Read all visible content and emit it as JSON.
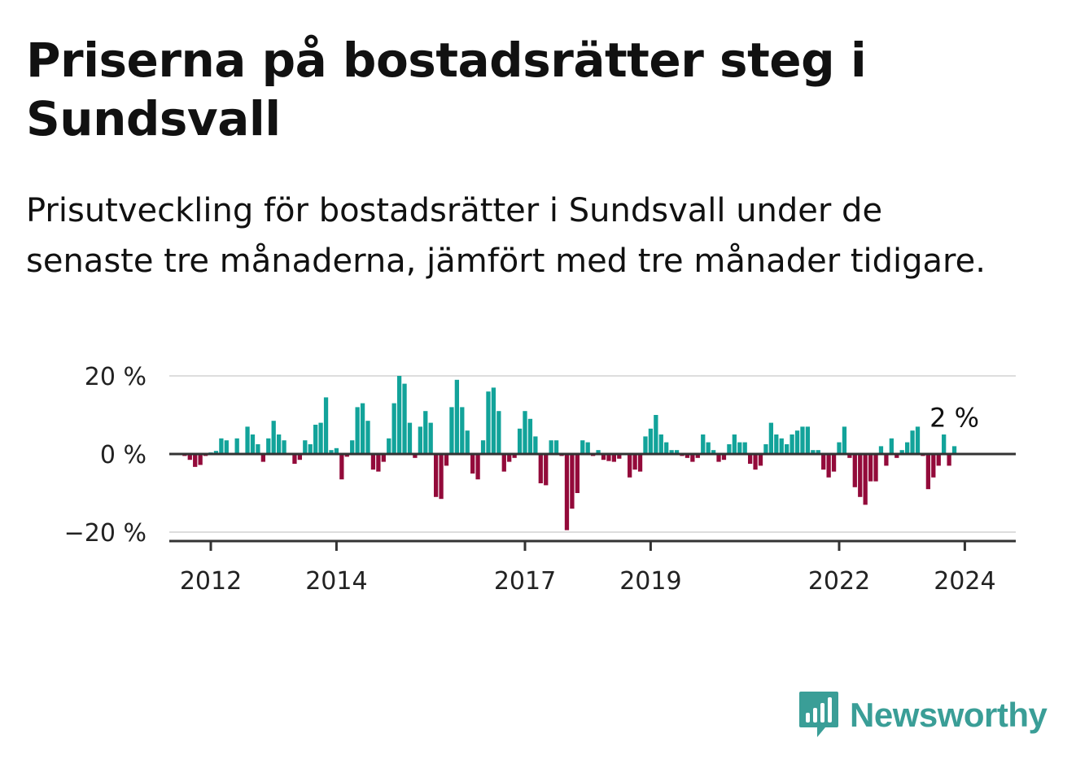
{
  "title": "Priserna på bostadsrätter steg i Sundsvall",
  "subtitle": "Prisutveckling för bostadsrätter i Sundsvall under de senaste tre månaderna, jämfört med tre månader tidigare.",
  "brand": {
    "name": "Newsworthy",
    "color": "#3a9e97",
    "icon": "bar-chart-badge-icon"
  },
  "colors": {
    "positive": "#12a39a",
    "negative": "#930a3a",
    "grid": "#dddddd",
    "axis": "#333333"
  },
  "chart_data": {
    "type": "bar",
    "title": "Priserna på bostadsrätter steg i Sundsvall",
    "xlabel": "",
    "ylabel": "",
    "ylim": [
      -22,
      21
    ],
    "y_ticks": [
      {
        "value": 20,
        "label": "20 %"
      },
      {
        "value": 0,
        "label": "0 %"
      },
      {
        "value": -20,
        "label": "−20 %"
      }
    ],
    "x_ticks": [
      {
        "year": 2012,
        "label": "2012"
      },
      {
        "year": 2014,
        "label": "2014"
      },
      {
        "year": 2017,
        "label": "2017"
      },
      {
        "year": 2019,
        "label": "2019"
      },
      {
        "year": 2022,
        "label": "2022"
      },
      {
        "year": 2024,
        "label": "2024"
      }
    ],
    "x_start": "2011-08",
    "grid": true,
    "annotation": {
      "label": "2 %",
      "value": 2,
      "at": "last"
    },
    "values": [
      -0.5,
      -1.5,
      -3.3,
      -2.8,
      -0.5,
      0.4,
      0.8,
      4.0,
      3.5,
      0.3,
      4.0,
      0.3,
      7.0,
      5.0,
      2.5,
      -2.0,
      4.0,
      8.5,
      5.0,
      3.5,
      0.3,
      -2.5,
      -1.5,
      3.5,
      2.5,
      7.5,
      8.0,
      14.5,
      1.0,
      1.5,
      -6.5,
      -0.7,
      3.5,
      12.0,
      13.0,
      8.5,
      -4.0,
      -4.5,
      -2.0,
      4.0,
      13.0,
      20.0,
      18.0,
      8.0,
      -1.0,
      7.0,
      11.0,
      8.0,
      -11.0,
      -11.5,
      -3.0,
      12.0,
      19.0,
      12.0,
      6.0,
      -5.0,
      -6.5,
      3.5,
      16.0,
      17.0,
      11.0,
      -4.5,
      -2.0,
      -1.0,
      6.5,
      11.0,
      9.0,
      4.5,
      -7.5,
      -8.0,
      3.5,
      3.5,
      -0.5,
      -19.5,
      -14.0,
      -10.0,
      3.5,
      3.0,
      -0.5,
      1.0,
      -1.5,
      -1.8,
      -2.0,
      -1.2,
      -0.3,
      -6.0,
      -4.0,
      -4.5,
      4.5,
      6.5,
      10.0,
      5.0,
      3.0,
      1.0,
      1.0,
      -0.5,
      -1.0,
      -2.0,
      -1.0,
      5.0,
      3.0,
      1.0,
      -2.0,
      -1.5,
      2.5,
      5.0,
      3.0,
      3.0,
      -2.5,
      -4.0,
      -3.0,
      2.5,
      8.0,
      5.0,
      4.0,
      2.5,
      5.0,
      6.0,
      7.0,
      7.0,
      1.0,
      1.0,
      -4.0,
      -6.0,
      -4.5,
      3.0,
      7.0,
      -1.0,
      -8.5,
      -11.0,
      -13.0,
      -7.0,
      -7.0,
      2.0,
      -3.0,
      4.0,
      -1.0,
      1.0,
      3.0,
      6.0,
      7.0,
      -0.5,
      -9.0,
      -6.0,
      -3.0,
      5.0,
      -3.0,
      2.0
    ]
  }
}
